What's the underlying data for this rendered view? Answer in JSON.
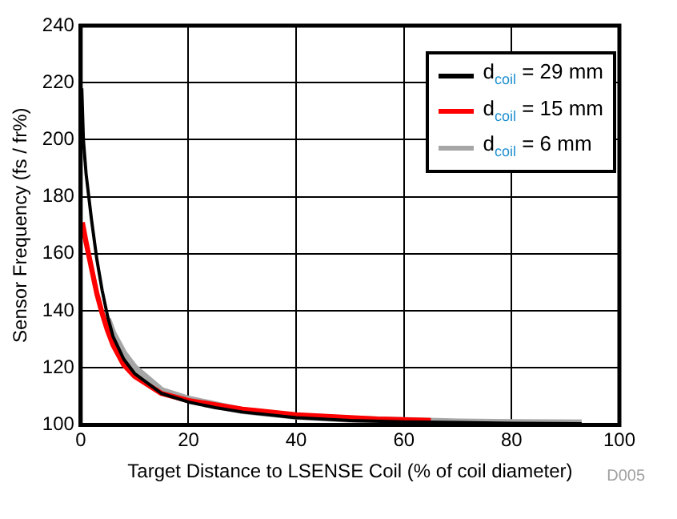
{
  "chart_data": {
    "type": "line",
    "xlabel": "Target Distance to LSENSE Coil (% of coil diameter)",
    "ylabel": "Sensor Frequency (fs / fr%)",
    "annotations": [
      "D005"
    ],
    "xlim": [
      0,
      100
    ],
    "xticks": [
      0,
      20,
      40,
      60,
      80,
      100
    ],
    "ylim": [
      100,
      240
    ],
    "yticks": [
      100,
      120,
      140,
      160,
      180,
      200,
      220,
      240
    ],
    "grid": true,
    "legend": "top right",
    "marker": "none",
    "line_style": "solid",
    "series": [
      {
        "name": "d$_{coil}$ = 29 mm",
        "color": "#000000",
        "x": [
          0.2,
          0.5,
          1,
          2,
          3,
          4,
          5,
          6,
          8,
          10,
          15,
          20,
          25,
          30,
          40,
          50,
          60,
          70,
          80,
          93
        ],
        "values": [
          218,
          200,
          188,
          172,
          158,
          147,
          138,
          131,
          123,
          118,
          111,
          108,
          106,
          104.5,
          102.5,
          101.5,
          101,
          100.8,
          100.5,
          100.4
        ]
      },
      {
        "name": "d$_{coil}$ = 15 mm",
        "color": "#ff0000",
        "x": [
          0.3,
          1,
          2,
          3,
          4,
          5,
          6,
          8,
          10,
          15,
          20,
          30,
          40,
          50,
          55,
          65
        ],
        "values": [
          171,
          164,
          155,
          146,
          139,
          133,
          128,
          121,
          117,
          111,
          108.5,
          105.5,
          103.5,
          102.5,
          102,
          101.5
        ]
      },
      {
        "name": "d$_{coil}$ = 6 mm",
        "color": "#a6a6a6",
        "x": [
          5,
          6,
          8,
          10,
          15,
          20,
          30,
          40,
          50,
          60,
          70,
          80,
          93
        ],
        "values": [
          137,
          132,
          125,
          120,
          112,
          109,
          105,
          103,
          102,
          101.5,
          101,
          100.8,
          100.6
        ]
      }
    ]
  }
}
